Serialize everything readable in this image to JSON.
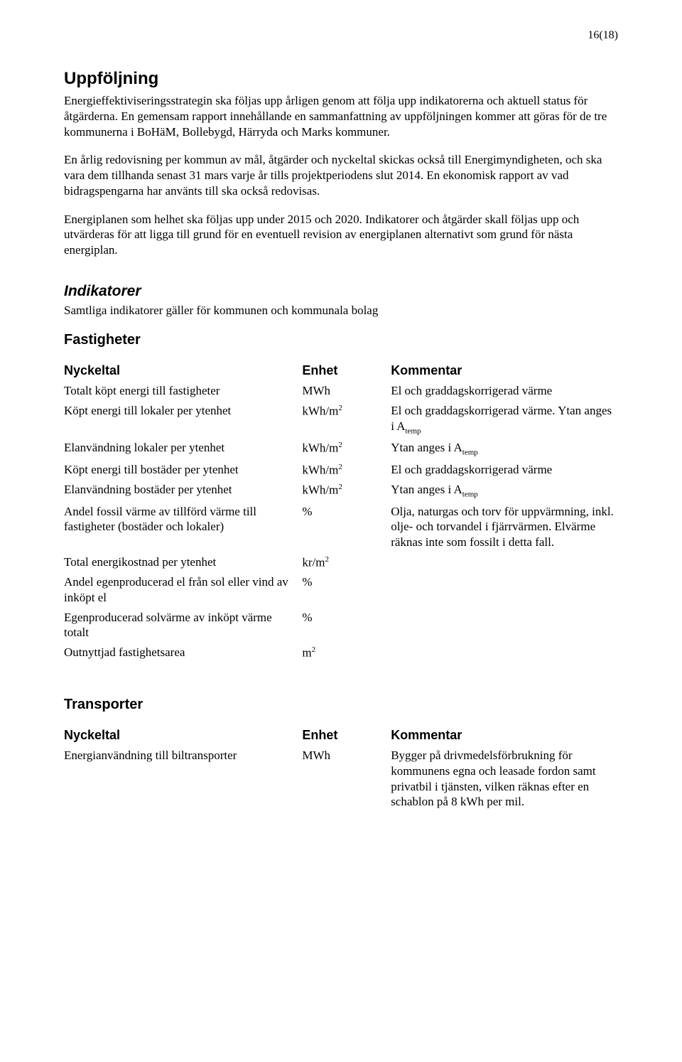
{
  "pagenum": "16(18)",
  "title": "Uppföljning",
  "paragraphs": {
    "p1": "Energieffektiviseringsstrategin ska följas upp årligen genom att följa upp indikatorerna och aktuell status för åtgärderna. En gemensam rapport innehållande en sammanfattning av uppföljningen kommer att göras för de tre kommunerna i BoHäM, Bollebygd, Härryda och Marks kommuner.",
    "p2": "En årlig redovisning per kommun av mål, åtgärder och nyckeltal skickas också till Energimyndigheten, och ska vara dem tillhanda senast 31 mars varje år tills projektperiodens slut 2014. En ekonomisk rapport av vad bidragspengarna har använts till ska också redovisas.",
    "p3": "Energiplanen som helhet ska följas upp under 2015 och 2020. Indikatorer och åtgärder skall följas upp och utvärderas för att ligga till grund för en eventuell revision av energiplanen alternativt som grund för nästa energiplan."
  },
  "indikatorer": {
    "heading": "Indikatorer",
    "subtitle": "Samtliga indikatorer gäller för kommunen och kommunala bolag"
  },
  "fastigheter": {
    "heading": "Fastigheter",
    "col_nyckeltal": "Nyckeltal",
    "col_enhet": "Enhet",
    "col_kommentar": "Kommentar",
    "rows": [
      {
        "nyckeltal": "Totalt köpt energi till fastigheter",
        "enhet": "MWh",
        "kommentar": "El och graddagskorrigerad värme"
      },
      {
        "nyckeltal": "Köpt energi till lokaler per ytenhet",
        "enhet_html": "kWh/m<sup>2</sup>",
        "kommentar_html": "El och graddagskorrigerad värme. Ytan anges i A<sub>temp</sub>"
      },
      {
        "nyckeltal": "Elanvändning lokaler per ytenhet",
        "enhet_html": "kWh/m<sup>2</sup>",
        "kommentar_html": "Ytan anges i A<sub>temp</sub>"
      },
      {
        "nyckeltal": "Köpt energi till bostäder per ytenhet",
        "enhet_html": "kWh/m<sup>2</sup>",
        "kommentar": "El och graddagskorrigerad värme"
      },
      {
        "nyckeltal": "Elanvändning bostäder per ytenhet",
        "enhet_html": "kWh/m<sup>2</sup>",
        "kommentar_html": "Ytan anges i A<sub>temp</sub>"
      },
      {
        "nyckeltal": "Andel fossil värme av tillförd värme till fastigheter (bostäder och lokaler)",
        "enhet": "%",
        "kommentar": "Olja, naturgas och torv för uppvärmning, inkl. olje- och torvandel i fjärrvärmen. Elvärme räknas inte som fossilt i detta fall."
      },
      {
        "nyckeltal": "Total energikostnad per ytenhet",
        "enhet_html": "kr/m<sup>2</sup>",
        "kommentar": ""
      },
      {
        "nyckeltal": "Andel egenproducerad el från sol eller vind av inköpt el",
        "enhet": "%",
        "kommentar": ""
      },
      {
        "nyckeltal": "Egenproducerad solvärme av inköpt värme totalt",
        "enhet": "%",
        "kommentar": ""
      },
      {
        "nyckeltal": "Outnyttjad fastighetsarea",
        "enhet_html": "m<sup>2</sup>",
        "kommentar": ""
      }
    ]
  },
  "transporter": {
    "heading": "Transporter",
    "col_nyckeltal": "Nyckeltal",
    "col_enhet": "Enhet",
    "col_kommentar": "Kommentar",
    "rows": [
      {
        "nyckeltal": "Energianvändning till biltransporter",
        "enhet": "MWh",
        "kommentar": "Bygger på drivmedelsförbrukning för kommunens egna och leasade fordon samt privatbil i tjänsten, vilken räknas efter en schablon på 8 kWh per mil."
      }
    ]
  }
}
